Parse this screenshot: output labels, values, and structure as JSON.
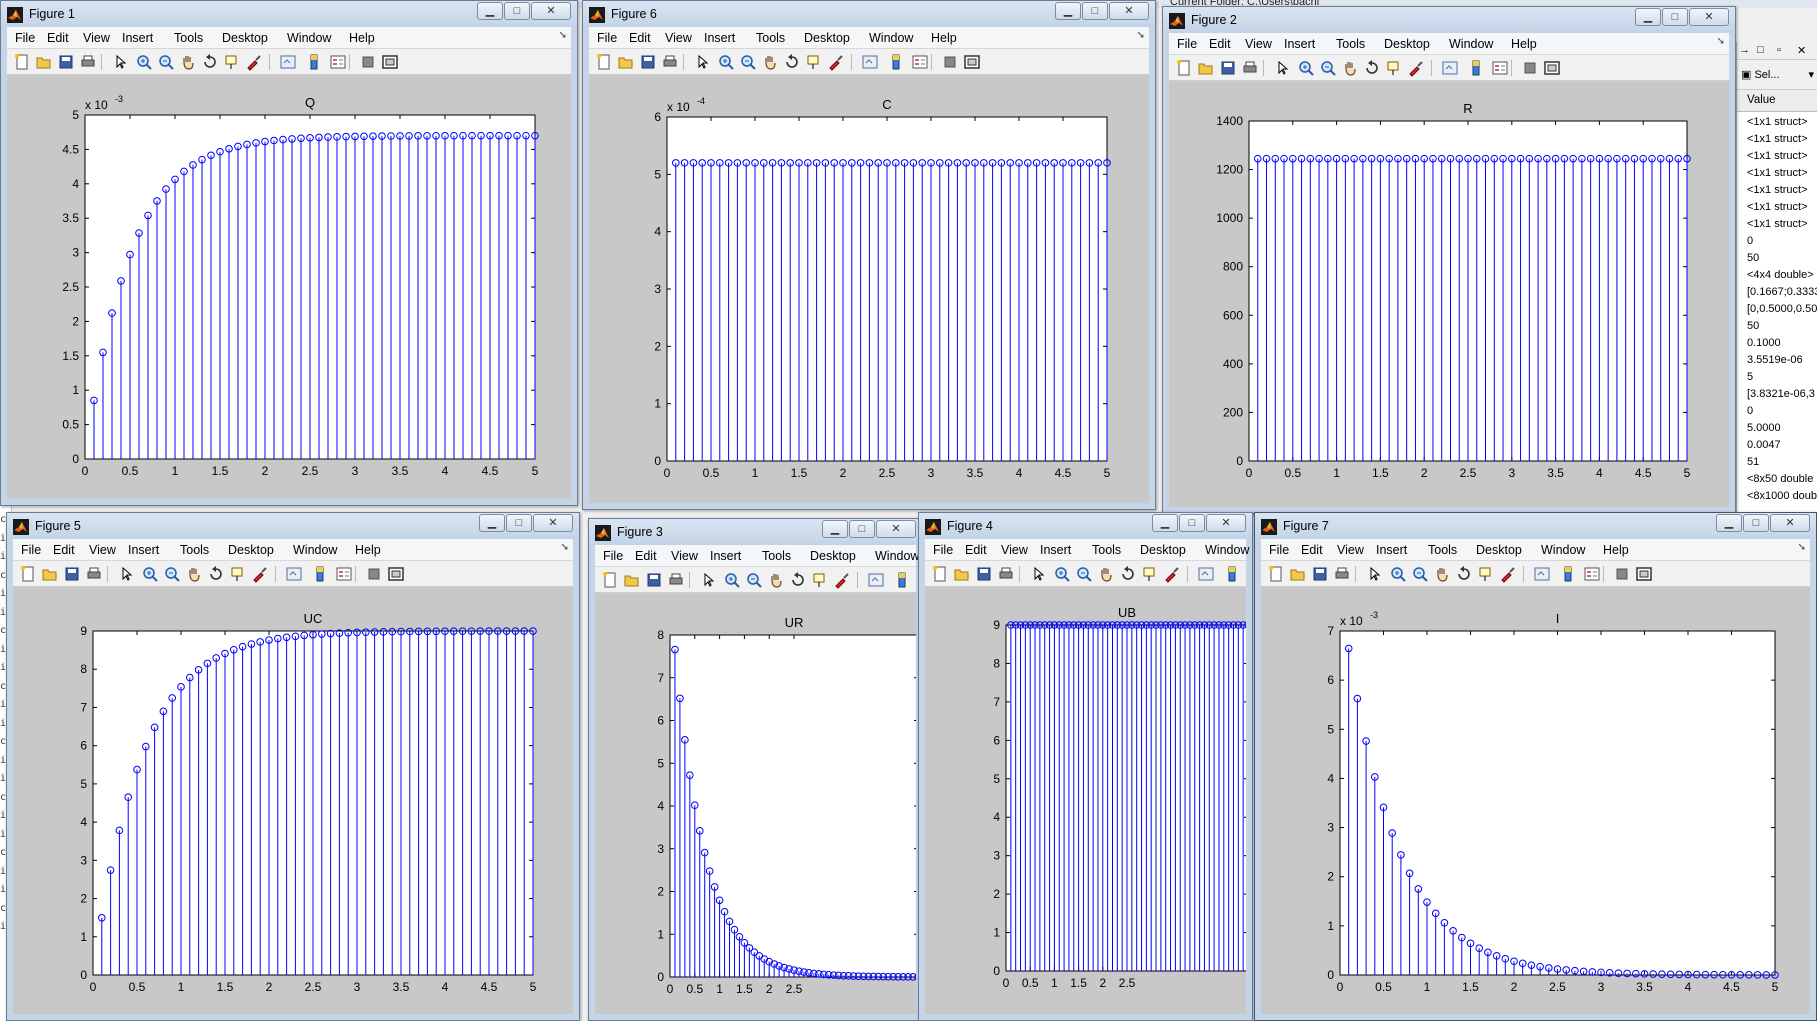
{
  "desktop": {
    "current_folder": "Current Folder:  C:\\Users\\bachi",
    "cmd_fragments": [
      "cl",
      "",
      "mp",
      "ig",
      "ce",
      "it",
      "ig",
      "ce",
      "it",
      "ig",
      "ce",
      "it",
      "ig",
      "ce",
      "it",
      "ig",
      "ce",
      "it",
      "ig",
      "ce",
      "it",
      "ig",
      "ce",
      "it",
      "ig",
      "ce",
      "it",
      "ig",
      "ce",
      "it"
    ]
  },
  "workspace": {
    "select_label": "Sel...",
    "header": "Value",
    "values": [
      "<1x1 struct>",
      "<1x1 struct>",
      "<1x1 struct>",
      "<1x1 struct>",
      "<1x1 struct>",
      "<1x1 struct>",
      "<1x1 struct>",
      "0",
      "50",
      "<4x4 double>",
      "[0.1667;0.3333",
      "[0,0.5000,0.50",
      "50",
      "0.1000",
      "3.5519e-06",
      "5",
      "[3.8321e-06,3",
      "0",
      "5.0000",
      "0.0047",
      "51",
      "<8x50 double",
      "<8x1000 doub"
    ]
  },
  "menus": [
    "File",
    "Edit",
    "View",
    "Insert",
    "Tools",
    "Desktop",
    "Window",
    "Help"
  ],
  "colors": {
    "stem": "#0000ff",
    "axes_bg": "#ffffff",
    "figure_bg": "#c8c8c8",
    "titlebar": "#c9d8ea"
  },
  "figures": [
    {
      "id": "fig1",
      "title": "Figure 1",
      "chart_data": {
        "type": "stem",
        "title": "Q",
        "exponent": "x 10",
        "exponent_power": "-3",
        "xlim": [
          0,
          5
        ],
        "ylim": [
          0,
          5
        ],
        "xticks": [
          "0",
          "0.5",
          "1",
          "1.5",
          "2",
          "2.5",
          "3",
          "3.5",
          "4",
          "4.5",
          "5"
        ],
        "yticks": [
          "0",
          "0.5",
          "1",
          "1.5",
          "2",
          "2.5",
          "3",
          "3.5",
          "4",
          "4.5",
          "5"
        ],
        "series": {
          "kind": "rise",
          "final": 4.7,
          "tau": 0.5,
          "start": 0.1,
          "step": 0.1,
          "count": 50
        }
      }
    },
    {
      "id": "fig6",
      "title": "Figure 6",
      "chart_data": {
        "type": "stem",
        "title": "C",
        "exponent": "x 10",
        "exponent_power": "-4",
        "xlim": [
          0,
          5
        ],
        "ylim": [
          0,
          6
        ],
        "xticks": [
          "0",
          "0.5",
          "1",
          "1.5",
          "2",
          "2.5",
          "3",
          "3.5",
          "4",
          "4.5",
          "5"
        ],
        "yticks": [
          "0",
          "1",
          "2",
          "3",
          "4",
          "5",
          "6"
        ],
        "series": {
          "kind": "const",
          "value": 5.2,
          "start": 0.1,
          "step": 0.1,
          "count": 50
        }
      }
    },
    {
      "id": "fig2",
      "title": "Figure 2",
      "chart_data": {
        "type": "stem",
        "title": "R",
        "exponent": "",
        "exponent_power": "",
        "xlim": [
          0,
          5
        ],
        "ylim": [
          0,
          1400
        ],
        "xticks": [
          "0",
          "0.5",
          "1",
          "1.5",
          "2",
          "2.5",
          "3",
          "3.5",
          "4",
          "4.5",
          "5"
        ],
        "yticks": [
          "0",
          "200",
          "400",
          "600",
          "800",
          "1000",
          "1200",
          "1400"
        ],
        "series": {
          "kind": "const",
          "value": 1245,
          "start": 0.1,
          "step": 0.1,
          "count": 50
        }
      }
    },
    {
      "id": "fig5",
      "title": "Figure 5",
      "chart_data": {
        "type": "stem",
        "title": "UC",
        "exponent": "",
        "exponent_power": "",
        "xlim": [
          0,
          5
        ],
        "ylim": [
          0,
          9
        ],
        "xticks": [
          "0",
          "0.5",
          "1",
          "1.5",
          "2",
          "2.5",
          "3",
          "3.5",
          "4",
          "4.5",
          "5"
        ],
        "yticks": [
          "0",
          "1",
          "2",
          "3",
          "4",
          "5",
          "6",
          "7",
          "8",
          "9"
        ],
        "series": {
          "kind": "rise",
          "final": 9.0,
          "tau": 0.55,
          "start": 0.1,
          "step": 0.1,
          "count": 50
        }
      }
    },
    {
      "id": "fig3",
      "title": "Figure 3",
      "chart_data": {
        "type": "stem",
        "title": "UR",
        "exponent": "",
        "exponent_power": "",
        "xlim": [
          0,
          5
        ],
        "ylim": [
          0,
          8
        ],
        "xticks": [
          "0",
          "0.5",
          "1",
          "1.5",
          "2",
          "2.5"
        ],
        "yticks": [
          "0",
          "1",
          "2",
          "3",
          "4",
          "5",
          "6",
          "7",
          "8"
        ],
        "series": {
          "kind": "decay",
          "amplitude": 9.0,
          "tau": 0.62,
          "start": 0.1,
          "step": 0.1,
          "count": 50
        }
      }
    },
    {
      "id": "fig4",
      "title": "Figure 4",
      "chart_data": {
        "type": "stem",
        "title": "UB",
        "exponent": "",
        "exponent_power": "",
        "xlim": [
          0,
          5
        ],
        "ylim": [
          0,
          9
        ],
        "xticks": [
          "0",
          "0.5",
          "1",
          "1.5",
          "2",
          "2.5"
        ],
        "yticks": [
          "0",
          "1",
          "2",
          "3",
          "4",
          "5",
          "6",
          "7",
          "8",
          "9"
        ],
        "series": {
          "kind": "const",
          "value": 9.0,
          "start": 0.1,
          "step": 0.1,
          "count": 50
        }
      }
    },
    {
      "id": "fig7",
      "title": "Figure 7",
      "chart_data": {
        "type": "stem",
        "title": "I",
        "exponent": "x 10",
        "exponent_power": "-3",
        "xlim": [
          0,
          5
        ],
        "ylim": [
          0,
          7
        ],
        "xticks": [
          "0",
          "0.5",
          "1",
          "1.5",
          "2",
          "2.5",
          "3",
          "3.5",
          "4",
          "4.5",
          "5"
        ],
        "yticks": [
          "0",
          "1",
          "2",
          "3",
          "4",
          "5",
          "6",
          "7"
        ],
        "series": {
          "kind": "decay",
          "amplitude": 7.85,
          "tau": 0.6,
          "start": 0.1,
          "step": 0.1,
          "count": 50
        }
      }
    }
  ]
}
